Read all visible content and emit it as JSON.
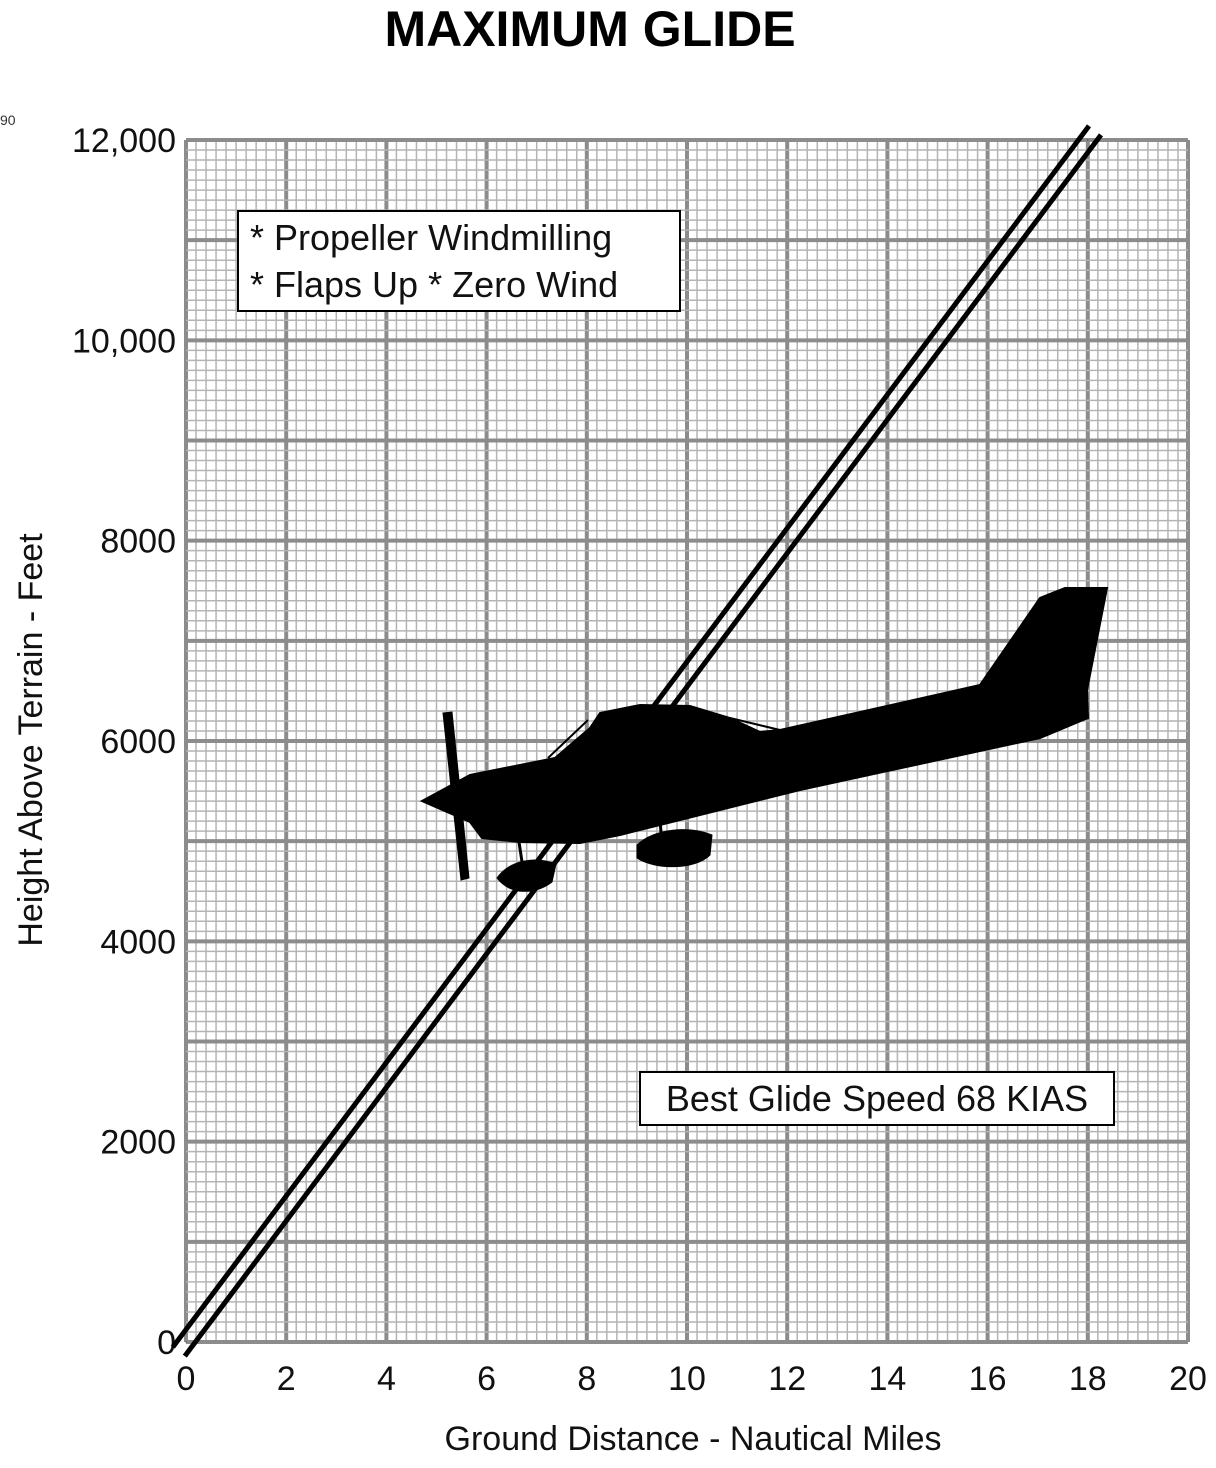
{
  "chart_data": {
    "type": "line",
    "title": "MAXIMUM GLIDE",
    "xlabel": "Ground Distance - Nautical Miles",
    "ylabel": "Height Above Terrain - Feet",
    "xlim": [
      0,
      20
    ],
    "ylim": [
      0,
      12000
    ],
    "x_ticks": [
      "0",
      "2",
      "4",
      "6",
      "8",
      "10",
      "12",
      "14",
      "16",
      "18",
      "20"
    ],
    "y_ticks": [
      "0",
      "2000",
      "4000",
      "6000",
      "8000",
      "10,000",
      "12,000"
    ],
    "grid": true,
    "series": [
      {
        "x": [
          0,
          18
        ],
        "y": [
          0,
          12000
        ]
      }
    ],
    "notes": {
      "conditions_line1": "* Propeller Windmilling",
      "conditions_line2": "* Flaps Up  * Zero Wind",
      "speed": "Best Glide Speed 68 KIAS"
    },
    "corner_label": "90"
  },
  "colors": {
    "grid_major": "#8c8c8c",
    "grid_minor": "#b4b4b4",
    "ink": "#000000"
  },
  "icons": [
    "airplane-icon"
  ]
}
